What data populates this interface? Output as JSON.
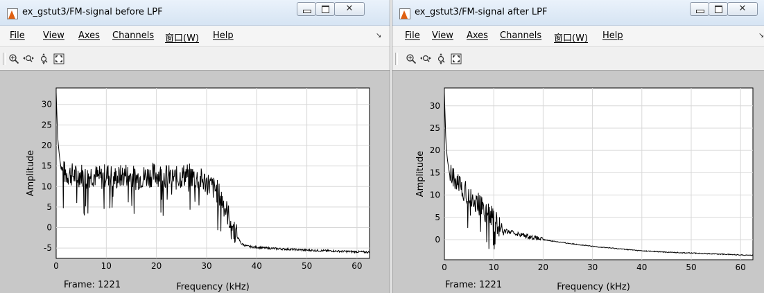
{
  "windows": [
    {
      "title": "ex_gstut3/FM-signal before LPF",
      "menu": [
        "File",
        "View",
        "Axes",
        "Channels",
        "窗口(W)",
        "Help"
      ],
      "dock_arrow": "↘",
      "controls": {
        "minimize": "minimize",
        "maximize": "maximize",
        "close": "✕"
      },
      "tools": [
        "zoom-in-icon",
        "zoom-x-icon",
        "zoom-y-icon",
        "autoscale-icon"
      ],
      "frame_label": "Frame: 1221",
      "chart_data": {
        "type": "line",
        "xlabel": "Frequency (kHz)",
        "ylabel": "Amplitude",
        "xlim": [
          0,
          62.5
        ],
        "ylim": [
          -7.5,
          34
        ],
        "xticks": [
          0,
          10,
          20,
          30,
          40,
          50,
          60
        ],
        "yticks": [
          -5,
          0,
          5,
          10,
          15,
          20,
          25,
          30
        ],
        "grid": true,
        "series": [
          {
            "x": [
              0,
              0.3,
              0.6,
              1,
              2,
              3,
              4,
              5,
              6,
              7,
              8,
              9,
              10,
              12,
              14,
              16,
              18,
              20,
              22,
              24,
              26,
              28,
              30,
              31,
              32,
              33,
              34,
              35,
              36,
              37,
              38,
              39,
              40,
              42,
              45,
              50,
              55,
              60,
              62.5
            ],
            "y": [
              33,
              22,
              18,
              14,
              13,
              13,
              12.5,
              13,
              12,
              13,
              12.5,
              12,
              13,
              12,
              13,
              12,
              12.5,
              13,
              12.5,
              12,
              13,
              12,
              11,
              10,
              9,
              7,
              4,
              1,
              -2,
              -4,
              -4.5,
              -4.7,
              -4.8,
              -5,
              -5.2,
              -5.5,
              -5.7,
              -5.9,
              -6
            ]
          }
        ]
      }
    },
    {
      "title": "ex_gstut3/FM-signal after LPF",
      "menu": [
        "File",
        "View",
        "Axes",
        "Channels",
        "窗口(W)",
        "Help"
      ],
      "dock_arrow": "↘",
      "controls": {
        "minimize": "minimize",
        "maximize": "maximize",
        "close": "✕"
      },
      "tools": [
        "zoom-in-icon",
        "zoom-x-icon",
        "zoom-y-icon",
        "autoscale-icon"
      ],
      "frame_label": "Frame: 1221",
      "chart_data": {
        "type": "line",
        "xlabel": "Frequency (kHz)",
        "ylabel": "Amplitude",
        "xlim": [
          0,
          62.5
        ],
        "ylim": [
          -4.5,
          34
        ],
        "xticks": [
          0,
          10,
          20,
          30,
          40,
          50,
          60
        ],
        "yticks": [
          0,
          5,
          10,
          15,
          20,
          25,
          30
        ],
        "grid": true,
        "series": [
          {
            "x": [
              0,
              0.3,
              0.6,
              1,
              2,
              3,
              4,
              5,
              6,
              7,
              8,
              9,
              10,
              11,
              12,
              14,
              16,
              18,
              20,
              25,
              30,
              35,
              40,
              45,
              50,
              55,
              60,
              62.5
            ],
            "y": [
              33,
              22,
              18,
              15,
              13.5,
              12.5,
              11,
              10,
              8.5,
              8,
              6.5,
              6,
              4.5,
              3,
              2,
              1.5,
              1,
              0.5,
              0,
              -0.8,
              -1.5,
              -2,
              -2.5,
              -2.8,
              -3,
              -3.2,
              -3.4,
              -3.5
            ]
          }
        ]
      }
    }
  ]
}
